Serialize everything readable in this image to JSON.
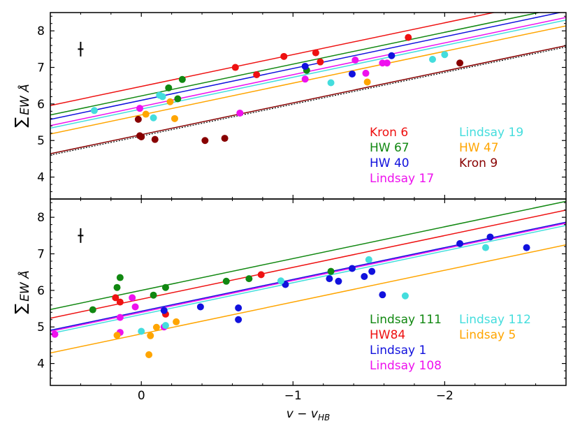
{
  "chart_data": [
    {
      "type": "scatter",
      "panel": "top",
      "xlabel": "v − v",
      "xlabel_sub": "HB",
      "ylabel_sym": "∑",
      "ylabel_text": "EW Å",
      "xlim": [
        0.6,
        -2.8
      ],
      "ylim": [
        3.4,
        8.5
      ],
      "xticks": [
        0,
        -1,
        -2
      ],
      "xtick_labels": [
        "0",
        "−1",
        "−2"
      ],
      "yticks": [
        4,
        5,
        6,
        7,
        8
      ],
      "ytick_labels": [
        "4",
        "5",
        "6",
        "7",
        "8"
      ],
      "slope": -0.87,
      "error_bar": {
        "x": 0.4,
        "y": 7.5,
        "err": 0.2
      },
      "legend_columns": [
        [
          "Kron 6",
          "HW 67",
          "HW 40",
          "Lindsay 17"
        ],
        [
          "Lindsay 19",
          "HW 47",
          "Kron 9"
        ]
      ],
      "series": [
        {
          "name": "Kron 6",
          "color": "#ee1111",
          "intercept": 6.48,
          "points": [
            [
              -0.62,
              7.0
            ],
            [
              -0.76,
              6.8
            ],
            [
              -0.94,
              7.3
            ],
            [
              -1.15,
              7.4
            ],
            [
              -1.18,
              7.15
            ],
            [
              -1.76,
              7.82
            ]
          ]
        },
        {
          "name": "HW 67",
          "color": "#118811",
          "intercept": 6.22,
          "points": [
            [
              -0.18,
              6.44
            ],
            [
              -0.24,
              6.14
            ],
            [
              -0.27,
              6.67
            ],
            [
              -1.09,
              6.92
            ]
          ]
        },
        {
          "name": "HW 40",
          "color": "#1111dd",
          "intercept": 6.1,
          "points": [
            [
              -1.08,
              7.03
            ],
            [
              -1.39,
              6.82
            ],
            [
              -1.65,
              7.32
            ]
          ]
        },
        {
          "name": "Lindsay 17",
          "color": "#ee11ee",
          "intercept": 5.93,
          "points": [
            [
              0.01,
              5.88
            ],
            [
              -0.65,
              5.75
            ],
            [
              -1.08,
              6.68
            ],
            [
              -1.41,
              7.2
            ],
            [
              -1.48,
              6.84
            ],
            [
              -1.59,
              7.12
            ],
            [
              -1.62,
              7.12
            ]
          ]
        },
        {
          "name": "Lindsay 19",
          "color": "#44dddd",
          "intercept": 5.86,
          "points": [
            [
              0.31,
              5.82
            ],
            [
              -0.12,
              6.24
            ],
            [
              -0.14,
              6.2
            ],
            [
              -0.08,
              5.62
            ],
            [
              -1.25,
              6.58
            ],
            [
              -1.92,
              7.22
            ],
            [
              -2.0,
              7.35
            ]
          ]
        },
        {
          "name": "HW 47",
          "color": "#ffa500",
          "intercept": 5.7,
          "points": [
            [
              -0.03,
              5.72
            ],
            [
              -0.19,
              6.06
            ],
            [
              -0.22,
              5.6
            ],
            [
              -1.49,
              6.6
            ]
          ]
        },
        {
          "name": "Kron 9",
          "color": "#880000",
          "intercept": 5.16,
          "points": [
            [
              0.02,
              5.58
            ],
            [
              0.01,
              5.13
            ],
            [
              0.0,
              5.1
            ],
            [
              -0.09,
              5.03
            ],
            [
              -0.42,
              5.0
            ],
            [
              -0.55,
              5.06
            ],
            [
              -2.1,
              7.12
            ]
          ]
        }
      ]
    },
    {
      "type": "scatter",
      "panel": "bottom",
      "xlabel": "v − v",
      "xlabel_sub": "HB",
      "ylabel_sym": "∑",
      "ylabel_text": "EW Å",
      "xlim": [
        0.6,
        -2.8
      ],
      "ylim": [
        3.4,
        8.5
      ],
      "xticks": [
        0,
        -1,
        -2
      ],
      "xtick_labels": [
        "0",
        "−1",
        "−2"
      ],
      "yticks": [
        4,
        5,
        6,
        7,
        8
      ],
      "ytick_labels": [
        "4",
        "5",
        "6",
        "7",
        "8"
      ],
      "slope": -0.87,
      "error_bar": {
        "x": 0.4,
        "y": 7.5,
        "err": 0.2
      },
      "legend_columns": [
        [
          "Lindsay 111",
          "HW84",
          "Lindsay 1",
          "Lindsay 108"
        ],
        [
          "Lindsay 112",
          "Lindsay 5"
        ]
      ],
      "series": [
        {
          "name": "Lindsay 111",
          "color": "#118811",
          "intercept": 6.0,
          "points": [
            [
              0.32,
              5.47
            ],
            [
              0.16,
              6.08
            ],
            [
              0.14,
              6.35
            ],
            [
              -0.08,
              5.87
            ],
            [
              -0.16,
              6.08
            ],
            [
              -0.56,
              6.25
            ],
            [
              -0.71,
              6.32
            ],
            [
              -1.25,
              6.52
            ]
          ]
        },
        {
          "name": "HW84",
          "color": "#ee1111",
          "intercept": 5.76,
          "points": [
            [
              0.17,
              5.8
            ],
            [
              0.14,
              5.68
            ],
            [
              -0.16,
              5.35
            ],
            [
              -0.79,
              6.43
            ]
          ]
        },
        {
          "name": "Lindsay 1",
          "color": "#1111dd",
          "intercept": 5.43,
          "points": [
            [
              -0.15,
              5.45
            ],
            [
              -0.39,
              5.55
            ],
            [
              -0.64,
              5.52
            ],
            [
              -0.64,
              5.2
            ],
            [
              -0.95,
              6.16
            ],
            [
              -1.24,
              6.32
            ],
            [
              -1.3,
              6.25
            ],
            [
              -1.39,
              6.6
            ],
            [
              -1.47,
              6.38
            ],
            [
              -1.52,
              6.52
            ],
            [
              -1.59,
              5.88
            ],
            [
              -2.1,
              7.28
            ],
            [
              -2.3,
              7.46
            ],
            [
              -2.54,
              7.17
            ]
          ]
        },
        {
          "name": "Lindsay 108",
          "color": "#ee11ee",
          "intercept": 5.4,
          "points": [
            [
              0.57,
              4.8
            ],
            [
              0.14,
              5.26
            ],
            [
              0.06,
              5.8
            ],
            [
              0.04,
              5.55
            ],
            [
              0.14,
              4.85
            ],
            [
              -0.15,
              5.0
            ]
          ]
        },
        {
          "name": "Lindsay 112",
          "color": "#44dddd",
          "intercept": 5.34,
          "points": [
            [
              0.0,
              4.88
            ],
            [
              -0.16,
              5.04
            ],
            [
              -0.92,
              6.26
            ],
            [
              -1.5,
              6.84
            ],
            [
              -1.74,
              5.85
            ],
            [
              -2.27,
              7.17
            ]
          ]
        },
        {
          "name": "Lindsay 5",
          "color": "#ffa500",
          "intercept": 4.81,
          "points": [
            [
              0.16,
              4.77
            ],
            [
              -0.05,
              4.24
            ],
            [
              -0.06,
              4.76
            ],
            [
              -0.1,
              4.99
            ],
            [
              -0.23,
              5.14
            ]
          ]
        }
      ]
    }
  ]
}
